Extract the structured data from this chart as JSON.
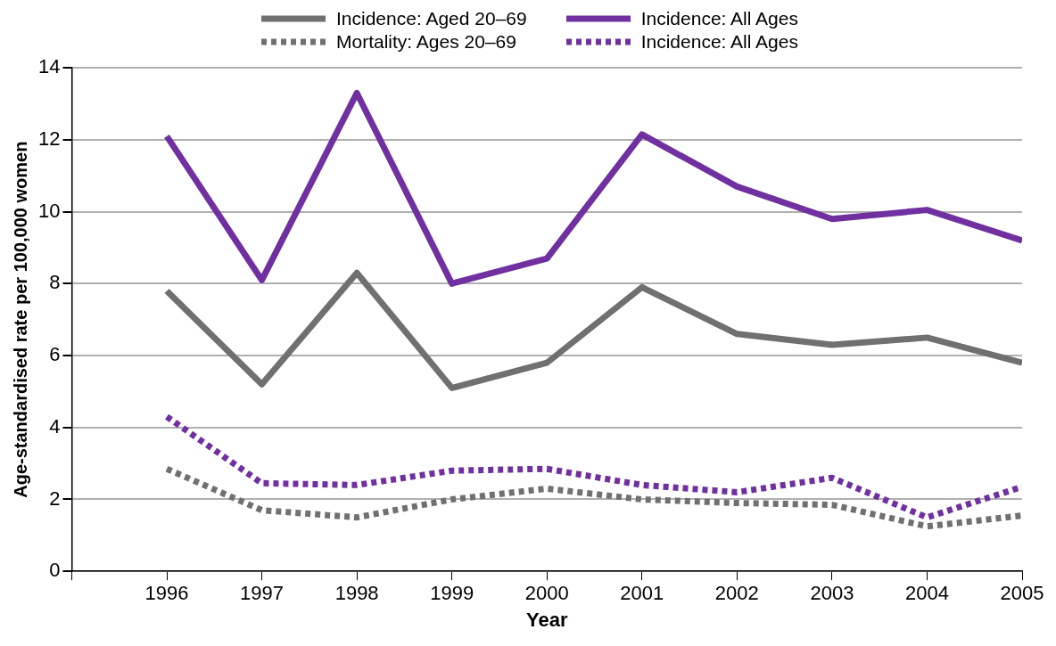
{
  "chart_data": {
    "type": "line",
    "xlabel": "Year",
    "ylabel": "Age-standardised rate per 100,000 women",
    "x": [
      1996,
      1997,
      1998,
      1999,
      2000,
      2001,
      2002,
      2003,
      2004,
      2005
    ],
    "series": [
      {
        "name": "Incidence: Aged 20–69",
        "color": "#707070",
        "line_style": "solid",
        "values": [
          7.8,
          5.2,
          8.3,
          5.1,
          5.8,
          7.9,
          6.6,
          6.3,
          6.5,
          5.8
        ]
      },
      {
        "name": "Incidence: All Ages",
        "color": "#7030a0",
        "line_style": "solid",
        "values": [
          12.1,
          8.1,
          13.3,
          8.0,
          8.7,
          12.15,
          10.7,
          9.8,
          10.05,
          9.2
        ]
      },
      {
        "name": "Mortality: Ages 20–69",
        "color": "#707070",
        "line_style": "dotted",
        "values": [
          2.85,
          1.7,
          1.5,
          2.0,
          2.3,
          2.0,
          1.9,
          1.85,
          1.25,
          1.55
        ]
      },
      {
        "name": "Incidence: All Ages",
        "color": "#7030a0",
        "line_style": "dotted",
        "values": [
          4.3,
          2.45,
          2.4,
          2.8,
          2.85,
          2.4,
          2.2,
          2.6,
          1.5,
          2.35
        ]
      }
    ],
    "xlim": [
      1995,
      2005
    ],
    "xticks": [
      {
        "value": 1995,
        "label": null
      },
      1996,
      1997,
      1998,
      1999,
      2000,
      2001,
      2002,
      2003,
      2004,
      2005
    ],
    "ylim": [
      0,
      14
    ],
    "yticks": [
      0,
      2,
      4,
      6,
      8,
      10,
      12,
      14
    ],
    "grid": "y",
    "legend": "top",
    "marker": "none"
  }
}
